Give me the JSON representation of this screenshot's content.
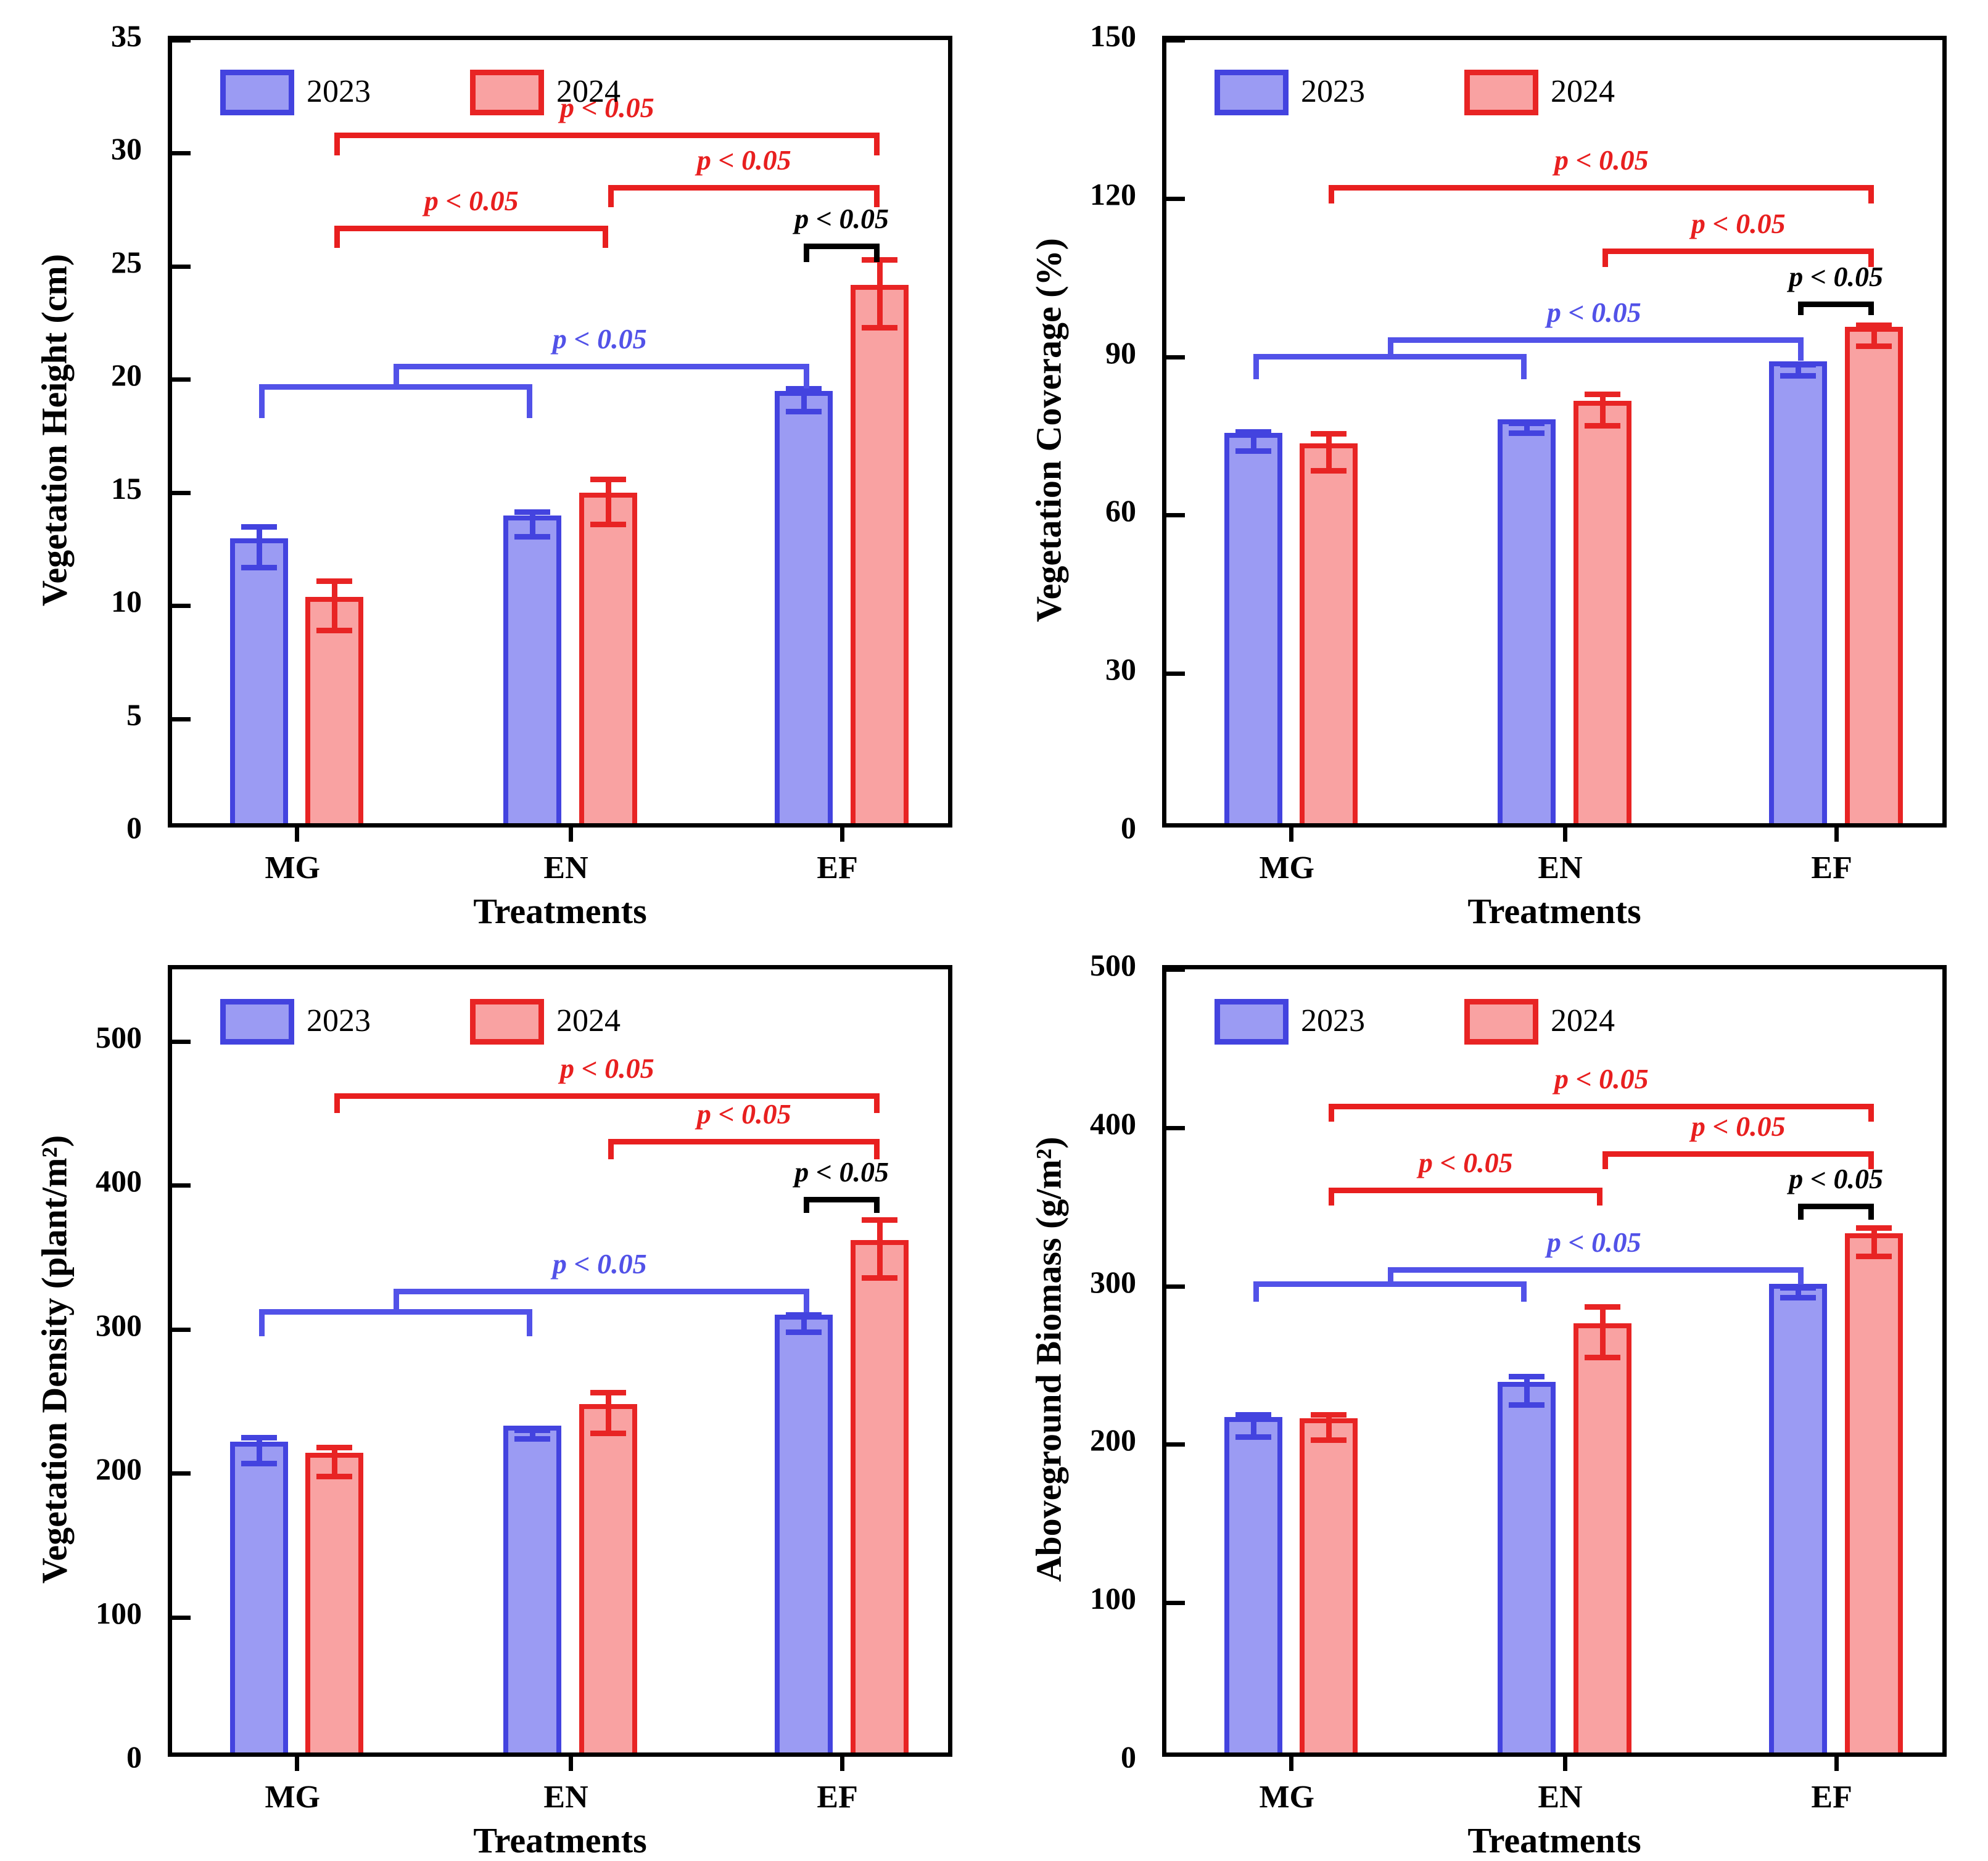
{
  "figure": {
    "legend": [
      "2023",
      "2024"
    ],
    "p_label": "p < 0.05",
    "colors": {
      "series_2023_fill": "#9b9bf3",
      "series_2023_stroke": "#4343df",
      "series_2024_fill": "#f9a2a2",
      "series_2024_stroke": "#e82424",
      "bracket_blue": "#5252e8",
      "bracket_red": "#e81f1f",
      "bracket_black": "#000000",
      "axis": "#000000"
    }
  },
  "chart_data": [
    {
      "type": "bar",
      "title": "",
      "ylabel": "Vegetation Height (cm)",
      "xlabel": "Treatments",
      "categories": [
        "MG",
        "EN",
        "EF"
      ],
      "series": [
        {
          "name": "2023",
          "values": [
            12.6,
            13.6,
            19.1
          ],
          "errors": [
            0.9,
            0.55,
            0.5
          ]
        },
        {
          "name": "2024",
          "values": [
            10.0,
            14.6,
            23.8
          ],
          "errors": [
            1.1,
            1.0,
            1.5
          ]
        }
      ],
      "ylim": [
        0,
        35
      ],
      "yticks": [
        0,
        5,
        10,
        15,
        20,
        25,
        30,
        35
      ],
      "grid": false,
      "legend_position": "top-left",
      "annotations": [
        {
          "kind": "bracket",
          "color": "red",
          "label": "p < 0.05",
          "from": "MG-2024",
          "to": "EF-2024",
          "y": 30.9,
          "tick": 1.0
        },
        {
          "kind": "bracket",
          "color": "red",
          "label": "p < 0.05",
          "from": "EN-2024",
          "to": "EF-2024",
          "y": 28.6,
          "tick": 1.0
        },
        {
          "kind": "bracket",
          "color": "red",
          "label": "p < 0.05",
          "from": "MG-2024",
          "to": "EN-2024",
          "y": 26.8,
          "tick": 1.0
        },
        {
          "kind": "bracket",
          "color": "black",
          "label": "p < 0.05",
          "from": "EF-2023",
          "to": "EF-2024",
          "y": 26.0,
          "tick": 0.8
        },
        {
          "kind": "nested",
          "color": "blue",
          "label": "p < 0.05",
          "lower_from": "MG-2023",
          "lower_to": "EN-2023",
          "lower_y": 19.8,
          "lower_tick": 1.5,
          "upper_to": "EF-2023",
          "upper_y": 20.7,
          "upper_tick": 1.1
        }
      ]
    },
    {
      "type": "bar",
      "title": "",
      "ylabel": "Vegetation Coverage (%)",
      "xlabel": "Treatments",
      "categories": [
        "MG",
        "EN",
        "EF"
      ],
      "series": [
        {
          "name": "2023",
          "values": [
            74,
            76.5,
            87.5
          ],
          "errors": [
            1.8,
            0.9,
            1.0
          ]
        },
        {
          "name": "2024",
          "values": [
            72,
            80,
            94
          ],
          "errors": [
            3.5,
            3.0,
            2.0
          ]
        }
      ],
      "ylim": [
        0,
        150
      ],
      "yticks": [
        0,
        30,
        60,
        90,
        120,
        150
      ],
      "grid": false,
      "legend_position": "top-left",
      "annotations": [
        {
          "kind": "bracket",
          "color": "red",
          "label": "p < 0.05",
          "from": "MG-2024",
          "to": "EF-2024",
          "y": 122.5,
          "tick": 3.5
        },
        {
          "kind": "bracket",
          "color": "red",
          "label": "p < 0.05",
          "from": "EN-2024",
          "to": "EF-2024",
          "y": 110.5,
          "tick": 3.5
        },
        {
          "kind": "bracket",
          "color": "black",
          "label": "p < 0.05",
          "from": "EF-2023",
          "to": "EF-2024",
          "y": 100.5,
          "tick": 2.6
        },
        {
          "kind": "nested",
          "color": "blue",
          "label": "p < 0.05",
          "lower_from": "MG-2023",
          "lower_to": "EN-2023",
          "lower_y": 90.5,
          "lower_tick": 4.7,
          "upper_to": "EF-2023",
          "upper_y": 93.7,
          "upper_tick": 4.5
        }
      ]
    },
    {
      "type": "bar",
      "title": "",
      "ylabel": "Vegetation  Density (plant/m²)",
      "xlabel": "Treatments",
      "categories": [
        "MG",
        "EN",
        "EF"
      ],
      "series": [
        {
          "name": "2023",
          "values": [
            216,
            227,
            304
          ],
          "errors": [
            9,
            3,
            6
          ]
        },
        {
          "name": "2024",
          "values": [
            208,
            242,
            356
          ],
          "errors": [
            10,
            14,
            20
          ]
        }
      ],
      "ylim": [
        0,
        550
      ],
      "yticks": [
        0,
        100,
        200,
        300,
        400,
        500
      ],
      "grid": false,
      "legend_position": "top-left",
      "annotations": [
        {
          "kind": "bracket",
          "color": "red",
          "label": "p < 0.05",
          "from": "MG-2024",
          "to": "EF-2024",
          "y": 464,
          "tick": 14
        },
        {
          "kind": "bracket",
          "color": "red",
          "label": "p < 0.05",
          "from": "EN-2024",
          "to": "EF-2024",
          "y": 432,
          "tick": 14
        },
        {
          "kind": "bracket",
          "color": "black",
          "label": "p < 0.05",
          "from": "EF-2023",
          "to": "EF-2024",
          "y": 392,
          "tick": 11
        },
        {
          "kind": "nested",
          "color": "blue",
          "label": "p < 0.05",
          "lower_from": "MG-2023",
          "lower_to": "EN-2023",
          "lower_y": 314,
          "lower_tick": 19,
          "upper_to": "EF-2023",
          "upper_y": 328,
          "upper_tick": 16
        }
      ]
    },
    {
      "type": "bar",
      "title": "",
      "ylabel": "Aboveground  Biomass (g/m²)",
      "xlabel": "Treatments",
      "categories": [
        "MG",
        "EN",
        "EF"
      ],
      "series": [
        {
          "name": "2023",
          "values": [
            212,
            234,
            296
          ],
          "errors": [
            7,
            9,
            3
          ]
        },
        {
          "name": "2024",
          "values": [
            211,
            271,
            328
          ],
          "errors": [
            8,
            16,
            9
          ]
        }
      ],
      "ylim": [
        0,
        500
      ],
      "yticks": [
        0,
        100,
        200,
        300,
        400,
        500
      ],
      "grid": false,
      "legend_position": "top-left",
      "annotations": [
        {
          "kind": "bracket",
          "color": "red",
          "label": "p < 0.05",
          "from": "MG-2024",
          "to": "EF-2024",
          "y": 415,
          "tick": 11
        },
        {
          "kind": "bracket",
          "color": "red",
          "label": "p < 0.05",
          "from": "EN-2024",
          "to": "EF-2024",
          "y": 385,
          "tick": 11
        },
        {
          "kind": "bracket",
          "color": "red",
          "label": "p < 0.05",
          "from": "MG-2024",
          "to": "EN-2024",
          "y": 362,
          "tick": 11
        },
        {
          "kind": "bracket",
          "color": "black",
          "label": "p < 0.05",
          "from": "EF-2023",
          "to": "EF-2024",
          "y": 352,
          "tick": 10
        },
        {
          "kind": "nested",
          "color": "blue",
          "label": "p < 0.05",
          "lower_from": "MG-2023",
          "lower_to": "EN-2023",
          "lower_y": 303,
          "lower_tick": 13,
          "upper_to": "EF-2023",
          "upper_y": 312,
          "upper_tick": 11
        }
      ]
    }
  ]
}
